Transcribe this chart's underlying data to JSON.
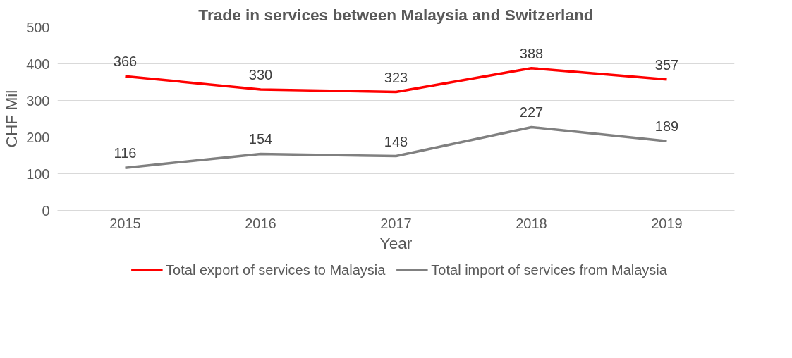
{
  "chart_data": {
    "type": "line",
    "title": "Trade in services between Malaysia and Switzerland",
    "xlabel": "Year",
    "ylabel": "CHF Mil",
    "categories": [
      "2015",
      "2016",
      "2017",
      "2018",
      "2019"
    ],
    "series": [
      {
        "name": "Total export of services to Malaysia",
        "color": "#ff0000",
        "values": [
          366,
          330,
          323,
          388,
          357
        ]
      },
      {
        "name": "Total import of services from Malaysia",
        "color": "#808080",
        "values": [
          116,
          154,
          148,
          227,
          189
        ]
      }
    ],
    "ylim": [
      0,
      500
    ],
    "yticks": [
      0,
      100,
      200,
      300,
      400,
      500
    ],
    "grid": "y",
    "legend": "bottom",
    "data_labels": true,
    "marker": "none",
    "line_style": "solid"
  }
}
